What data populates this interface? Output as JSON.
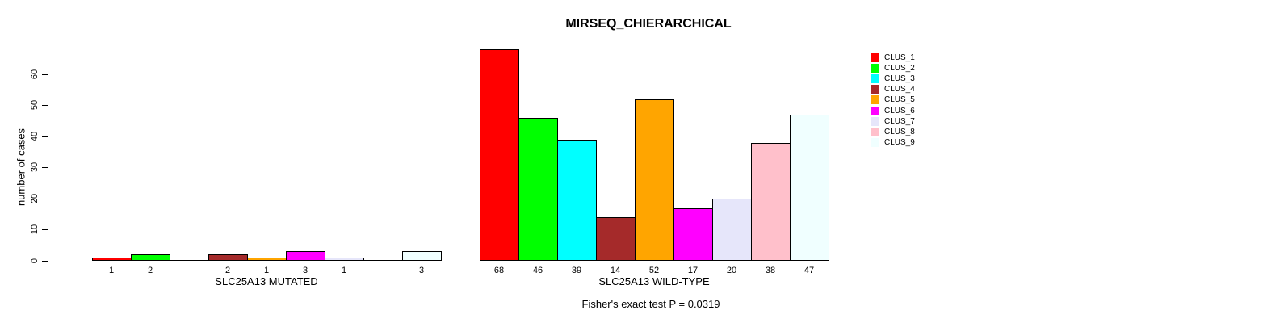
{
  "chart_data": {
    "type": "bar",
    "title": "MIRSEQ_CHIERARCHICAL",
    "ylabel": "number of cases",
    "xlabel": "",
    "ylim": [
      0,
      60
    ],
    "yticks": [
      0,
      10,
      20,
      30,
      40,
      50,
      60
    ],
    "grid": false,
    "legend_position": "right",
    "bar_border_color": "#000000",
    "zero_bars_unlabeled": true,
    "categories": [
      "SLC25A13 MUTATED",
      "SLC25A13 WILD-TYPE"
    ],
    "series": [
      {
        "name": "CLUS_1",
        "color": "#FF0000",
        "values": [
          1,
          68
        ]
      },
      {
        "name": "CLUS_2",
        "color": "#00FF00",
        "values": [
          2,
          46
        ]
      },
      {
        "name": "CLUS_3",
        "color": "#00FFFF",
        "values": [
          0,
          39
        ]
      },
      {
        "name": "CLUS_4",
        "color": "#A52A2A",
        "values": [
          2,
          14
        ]
      },
      {
        "name": "CLUS_5",
        "color": "#FFA500",
        "values": [
          1,
          52
        ]
      },
      {
        "name": "CLUS_6",
        "color": "#FF00FF",
        "values": [
          3,
          17
        ]
      },
      {
        "name": "CLUS_7",
        "color": "#E6E6FA",
        "values": [
          1,
          20
        ]
      },
      {
        "name": "CLUS_8",
        "color": "#FFC0CB",
        "values": [
          0,
          38
        ]
      },
      {
        "name": "CLUS_9",
        "color": "#F0FFFF",
        "values": [
          3,
          47
        ]
      }
    ],
    "annotation": "Fisher's exact test P = 0.0319"
  }
}
